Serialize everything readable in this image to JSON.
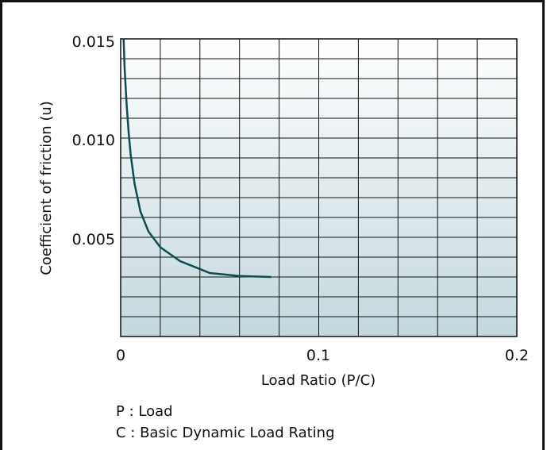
{
  "chart_data": {
    "type": "line",
    "xlabel": "Load Ratio (P/C)",
    "ylabel": "Coefficient of friction (u)",
    "xlim": [
      0,
      0.2
    ],
    "ylim": [
      0,
      0.015
    ],
    "x_ticks": [
      0,
      0.1,
      0.2
    ],
    "x_tick_labels": [
      "0",
      "0.1",
      "0.2"
    ],
    "y_ticks": [
      0.005,
      0.01,
      0.015
    ],
    "y_tick_labels": [
      "0.005",
      "0.010",
      "0.015"
    ],
    "grid": true,
    "series": [
      {
        "x": [
          0.0015,
          0.002,
          0.003,
          0.004,
          0.005,
          0.007,
          0.01,
          0.014,
          0.02,
          0.03,
          0.045,
          0.06,
          0.076
        ],
        "y": [
          0.015,
          0.0135,
          0.0117,
          0.0103,
          0.0092,
          0.0077,
          0.0063,
          0.0053,
          0.0045,
          0.0038,
          0.0032,
          0.00305,
          0.003
        ]
      }
    ],
    "notes": [
      "P : Load",
      "C : Basic Dynamic Load Rating"
    ]
  },
  "colors": {
    "line": "#0e4d4f",
    "grid": "#111111",
    "plot_top": "#ffffff",
    "plot_bottom": "#c3d8de"
  }
}
